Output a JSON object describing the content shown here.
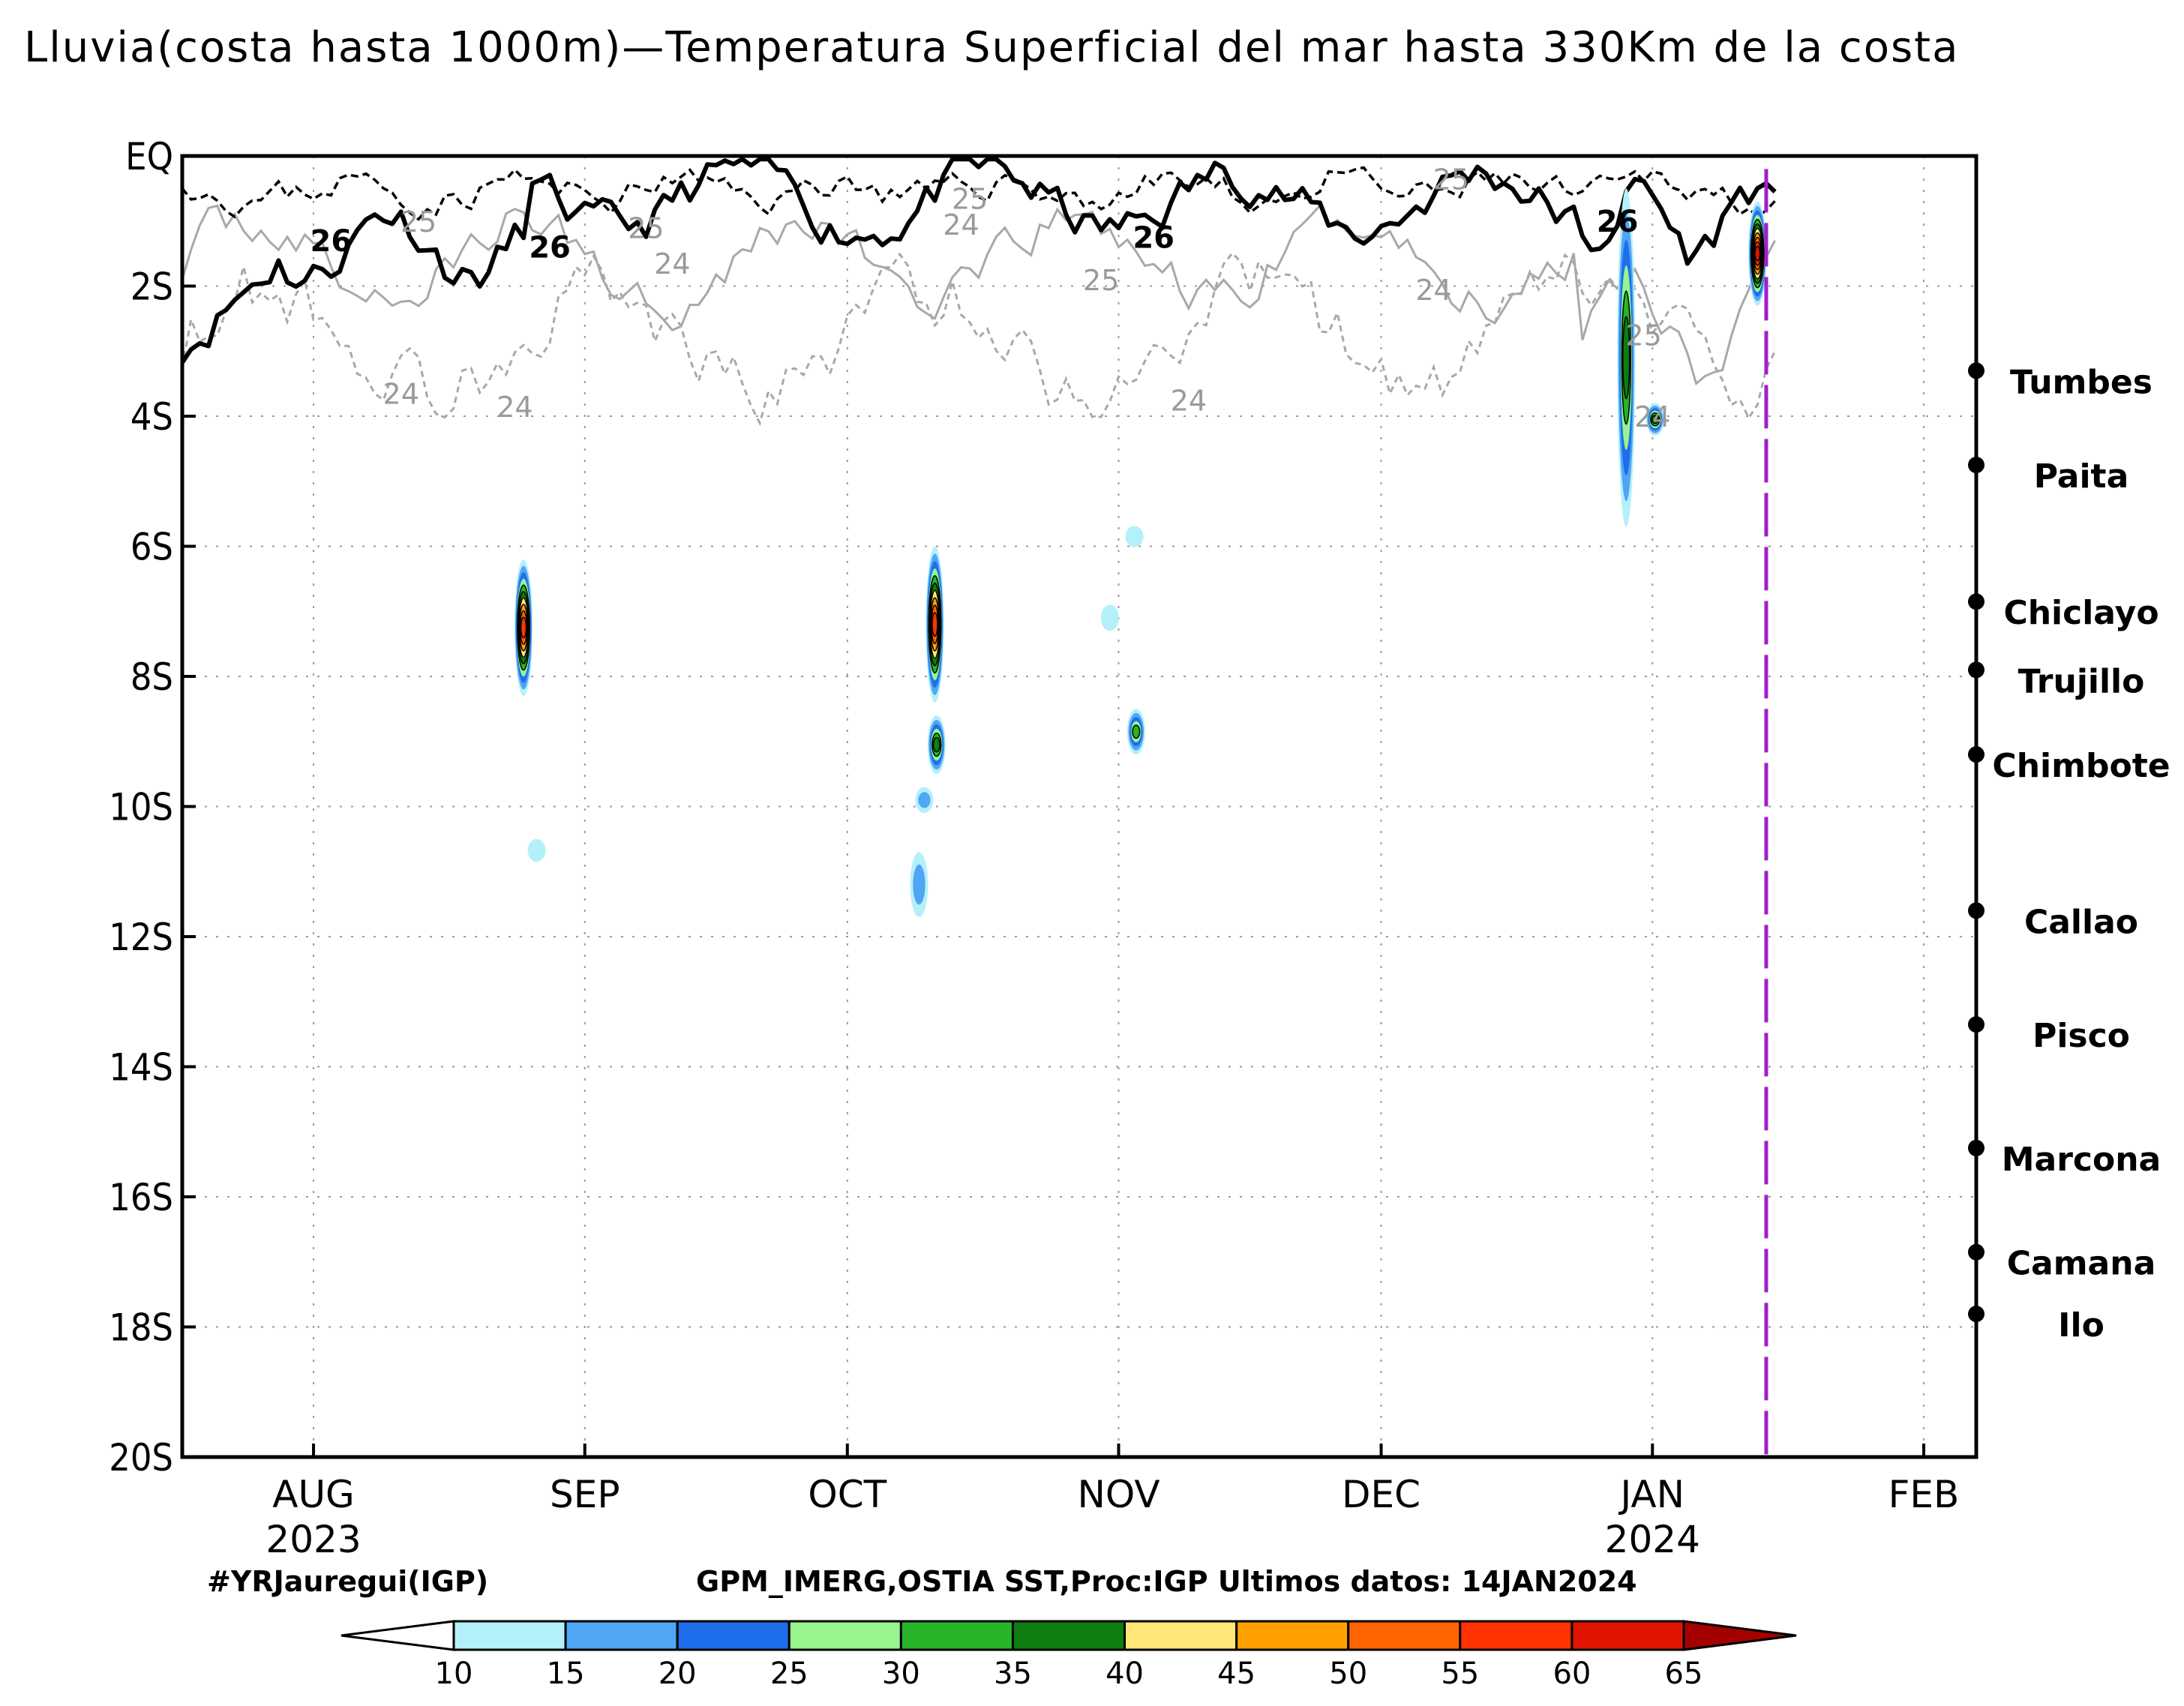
{
  "chart_data": {
    "type": "heatmap",
    "title": "Lluvia(costa hasta 1000m)—Temperatura Superficial del mar hasta 330Km de la costa",
    "xlabel": "",
    "ylabel": "",
    "x_range": [
      "2023-07-17",
      "2024-02-01"
    ],
    "ylim": [
      -20,
      0
    ],
    "y_ticks": [
      {
        "value": 0,
        "label": "EQ"
      },
      {
        "value": -2,
        "label": "2S"
      },
      {
        "value": -4,
        "label": "4S"
      },
      {
        "value": -6,
        "label": "6S"
      },
      {
        "value": -8,
        "label": "8S"
      },
      {
        "value": -10,
        "label": "10S"
      },
      {
        "value": -12,
        "label": "12S"
      },
      {
        "value": -14,
        "label": "14S"
      },
      {
        "value": -16,
        "label": "16S"
      },
      {
        "value": -18,
        "label": "18S"
      },
      {
        "value": -20,
        "label": "20S"
      }
    ],
    "x_ticks": [
      {
        "day": 15,
        "label": "AUG",
        "year": "2023"
      },
      {
        "day": 46,
        "label": "SEP",
        "year": ""
      },
      {
        "day": 76,
        "label": "OCT",
        "year": ""
      },
      {
        "day": 107,
        "label": "NOV",
        "year": ""
      },
      {
        "day": 137,
        "label": "DEC",
        "year": ""
      },
      {
        "day": 168,
        "label": "JAN",
        "year": "2024"
      },
      {
        "day": 199,
        "label": "FEB",
        "year": ""
      }
    ],
    "last_data_day": 181,
    "cities": [
      {
        "name": "Tumbes",
        "lat": -3.3
      },
      {
        "name": "Paita",
        "lat": -4.75
      },
      {
        "name": "Chiclayo",
        "lat": -6.85
      },
      {
        "name": "Trujillo",
        "lat": -7.9
      },
      {
        "name": "Chimbote",
        "lat": -9.2
      },
      {
        "name": "Callao",
        "lat": -11.6
      },
      {
        "name": "Pisco",
        "lat": -13.35
      },
      {
        "name": "Marcona",
        "lat": -15.25
      },
      {
        "name": "Camana",
        "lat": -16.85
      },
      {
        "name": "Ilo",
        "lat": -17.8
      }
    ],
    "sst_contour_labels": [
      {
        "value": "26",
        "day": 17,
        "lat": -1.3,
        "style": "bold"
      },
      {
        "value": "26",
        "day": 42,
        "lat": -1.4,
        "style": "bold"
      },
      {
        "value": "26",
        "day": 111,
        "lat": -1.25,
        "style": "bold"
      },
      {
        "value": "26",
        "day": 164,
        "lat": -1.0,
        "style": "bold"
      },
      {
        "value": "25",
        "day": 27,
        "lat": -1.0,
        "style": "gray"
      },
      {
        "value": "25",
        "day": 53,
        "lat": -1.1,
        "style": "gray"
      },
      {
        "value": "25",
        "day": 90,
        "lat": -0.65,
        "style": "gray"
      },
      {
        "value": "25",
        "day": 105,
        "lat": -1.9,
        "style": "gray"
      },
      {
        "value": "25",
        "day": 145,
        "lat": -0.35,
        "style": "gray"
      },
      {
        "value": "25",
        "day": 167,
        "lat": -2.75,
        "style": "gray"
      },
      {
        "value": "24",
        "day": 89,
        "lat": -1.05,
        "style": "gray"
      },
      {
        "value": "24",
        "day": 56,
        "lat": -1.65,
        "style": "gray"
      },
      {
        "value": "24",
        "day": 143,
        "lat": -2.05,
        "style": "gray"
      },
      {
        "value": "24",
        "day": 25,
        "lat": -3.65,
        "style": "gray"
      },
      {
        "value": "24",
        "day": 38,
        "lat": -3.85,
        "style": "gray"
      },
      {
        "value": "24",
        "day": 115,
        "lat": -3.75,
        "style": "gray"
      },
      {
        "value": "24",
        "day": 168,
        "lat": -4.0,
        "style": "gray"
      }
    ],
    "rain_events": [
      {
        "day": 39,
        "lat_top": -6.2,
        "lat_bottom": -8.3,
        "max": 60
      },
      {
        "day": 40.5,
        "lat_top": -10.5,
        "lat_bottom": -10.85,
        "max": 15
      },
      {
        "day": 86,
        "lat_top": -6.0,
        "lat_bottom": -8.4,
        "max": 60
      },
      {
        "day": 86.2,
        "lat_top": -8.6,
        "lat_bottom": -9.5,
        "max": 40
      },
      {
        "day": 84.8,
        "lat_top": -9.7,
        "lat_bottom": -10.1,
        "max": 20
      },
      {
        "day": 84.2,
        "lat_top": -10.7,
        "lat_bottom": -11.7,
        "max": 20
      },
      {
        "day": 109,
        "lat_top": -8.5,
        "lat_bottom": -9.2,
        "max": 35
      },
      {
        "day": 108.8,
        "lat_top": -5.7,
        "lat_bottom": -6.0,
        "max": 15
      },
      {
        "day": 106,
        "lat_top": -6.9,
        "lat_bottom": -7.3,
        "max": 15
      },
      {
        "day": 165,
        "lat_top": -0.5,
        "lat_bottom": -5.7,
        "max": 40
      },
      {
        "day": 168.3,
        "lat_top": -3.8,
        "lat_bottom": -4.3,
        "max": 40
      },
      {
        "day": 180,
        "lat_top": -0.7,
        "lat_bottom": -2.3,
        "max": 65
      }
    ],
    "colorbar": {
      "ticks": [
        "10",
        "15",
        "20",
        "25",
        "30",
        "35",
        "40",
        "45",
        "50",
        "55",
        "60",
        "65"
      ],
      "colors": [
        "#b4f0fa",
        "#50a5f5",
        "#1e6eeb",
        "#96f58c",
        "#28b428",
        "#0f7d0f",
        "#ffe878",
        "#ffa000",
        "#ff6400",
        "#ff3200",
        "#e11400"
      ],
      "below_color": "#ffffff",
      "above_color": "#a50000"
    }
  },
  "footer": {
    "credit_left": "#YRJauregui(IGP)",
    "credit_center": "GPM_IMERG,OSTIA SST,Proc:IGP  Ultimos datos:  14JAN2024"
  }
}
